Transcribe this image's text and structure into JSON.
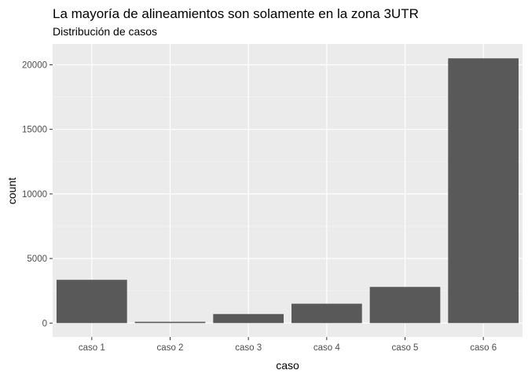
{
  "chart_data": {
    "type": "bar",
    "title": "La mayoría de alineamientos son solamente en la zona 3UTR",
    "subtitle": "Distribución de casos",
    "xlabel": "caso",
    "ylabel": "count",
    "categories": [
      "caso 1",
      "caso 2",
      "caso 3",
      "caso 4",
      "caso 5",
      "caso 6"
    ],
    "values": [
      3350,
      100,
      700,
      1500,
      2800,
      20500
    ],
    "ylim": [
      -1079,
      21610
    ],
    "yticks": [
      0,
      5000,
      10000,
      15000,
      20000
    ],
    "ytick_labels": [
      "0",
      "5000",
      "10000",
      "15000",
      "20000"
    ],
    "grid": true,
    "legend": "none",
    "colors": {
      "bar": "#595959",
      "panel_bg": "#ebebeb",
      "grid_major": "#ffffff",
      "grid_minor": "#f5f5f5",
      "tick_text": "#4d4d4d",
      "axis_title": "#000000"
    }
  }
}
